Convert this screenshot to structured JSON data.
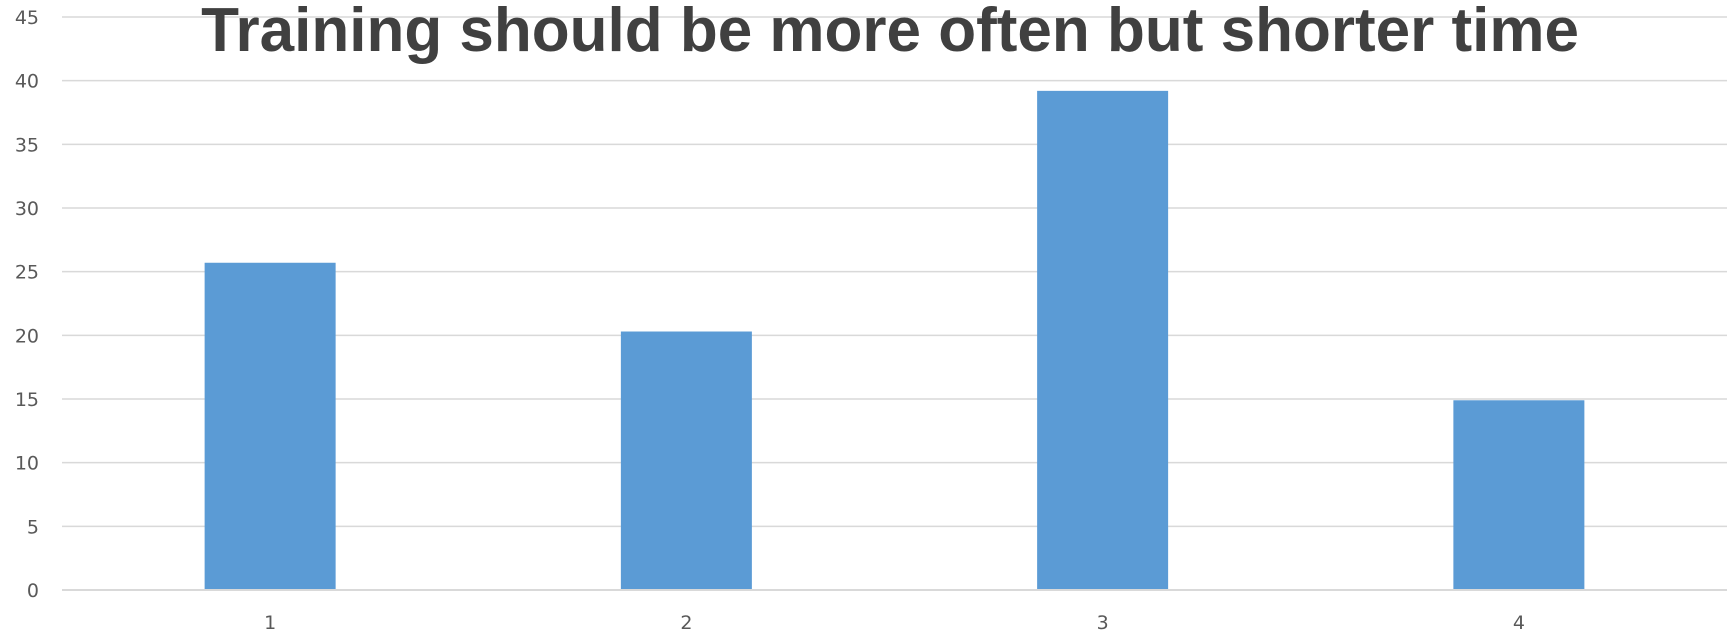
{
  "chart_data": {
    "type": "bar",
    "title": "Training should be more often but shorter time",
    "xlabel": "",
    "ylabel": "",
    "categories": [
      "1",
      "2",
      "3",
      "4"
    ],
    "values": [
      25.7,
      20.3,
      39.2,
      14.9
    ],
    "ylim": [
      0,
      45
    ],
    "yticks": [
      0,
      5,
      10,
      15,
      20,
      25,
      30,
      35,
      40,
      45
    ],
    "grid": true,
    "legend": "none",
    "colors": {
      "bar": "#5b9bd5",
      "grid": "#d9d9d9",
      "axis": "#d9d9d9",
      "tick_text": "#595959",
      "title": "#404040"
    }
  }
}
